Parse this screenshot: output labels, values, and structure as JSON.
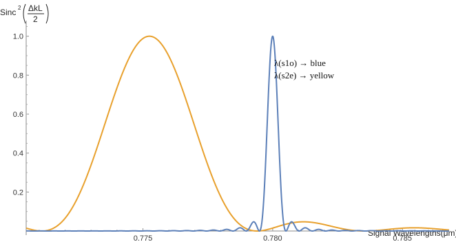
{
  "chart_data": {
    "type": "line",
    "title": "",
    "xlabel": "Signal Wavelengths(μm)",
    "ylabel": {
      "func": "Sinc",
      "power": "2",
      "numerator": "ΔkL",
      "denominator": "2"
    },
    "xlim": [
      0.7705,
      0.7868
    ],
    "ylim": [
      0,
      1.08
    ],
    "x_ticks": [
      {
        "value": 0.775,
        "label": "0.775"
      },
      {
        "value": 0.78,
        "label": "0.780"
      },
      {
        "value": 0.785,
        "label": "0.785"
      }
    ],
    "y_ticks": [
      {
        "value": 0.2,
        "label": "0.2"
      },
      {
        "value": 0.4,
        "label": "0.4"
      },
      {
        "value": 0.6,
        "label": "0.6"
      },
      {
        "value": 0.8,
        "label": "0.8"
      },
      {
        "value": 1.0,
        "label": "1.0"
      }
    ],
    "grid": false,
    "legend_position": "top-right",
    "annotations": [
      "λ(s1o) → blue",
      "λ(s2e) → yellow"
    ],
    "series": [
      {
        "color": "#5b7fb8",
        "model": "sinc_squared",
        "center": 0.78,
        "first_zero_halfwidth": 0.00051,
        "x_range": [
          0.7705,
          0.7868
        ]
      },
      {
        "color": "#e8a02c",
        "model": "sinc_squared",
        "center": 0.77525,
        "first_zero_halfwidth": 0.00415,
        "x_range": [
          0.7705,
          0.7868
        ]
      }
    ]
  }
}
